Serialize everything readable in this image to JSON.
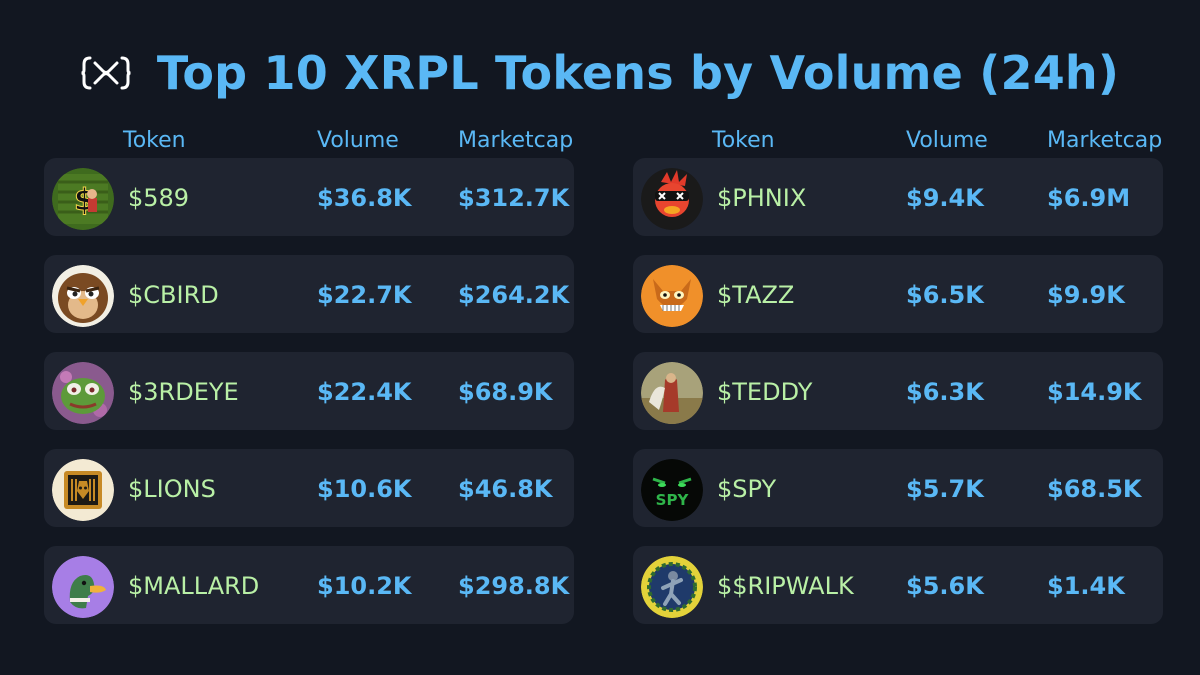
{
  "title": "Top 10 XRPL Tokens by Volume (24h)",
  "logo_icon": "xrpl-logo-icon",
  "colors": {
    "background": "#121721",
    "row": "#1f2430",
    "accent": "#5ab8f5",
    "token": "#b9f0a6"
  },
  "headers": {
    "token": "Token",
    "volume": "Volume",
    "marketcap": "Marketcap"
  },
  "left": [
    {
      "name": "$589",
      "volume": "$36.8K",
      "marketcap": "$312.7K",
      "icon": "589-token-avatar-icon"
    },
    {
      "name": "$CBIRD",
      "volume": "$22.7K",
      "marketcap": "$264.2K",
      "icon": "cbird-token-avatar-icon"
    },
    {
      "name": "$3RDEYE",
      "volume": "$22.4K",
      "marketcap": "$68.9K",
      "icon": "3rdeye-token-avatar-icon"
    },
    {
      "name": "$LIONS",
      "volume": "$10.6K",
      "marketcap": "$46.8K",
      "icon": "lions-token-avatar-icon"
    },
    {
      "name": "$MALLARD",
      "volume": "$10.2K",
      "marketcap": "$298.8K",
      "icon": "mallard-token-avatar-icon"
    }
  ],
  "right": [
    {
      "name": "$PHNIX",
      "volume": "$9.4K",
      "marketcap": "$6.9M",
      "icon": "phnix-token-avatar-icon"
    },
    {
      "name": "$TAZZ",
      "volume": "$6.5K",
      "marketcap": "$9.9K",
      "icon": "tazz-token-avatar-icon"
    },
    {
      "name": "$TEDDY",
      "volume": "$6.3K",
      "marketcap": "$14.9K",
      "icon": "teddy-token-avatar-icon"
    },
    {
      "name": "$SPY",
      "volume": "$5.7K",
      "marketcap": "$68.5K",
      "icon": "spy-token-avatar-icon",
      "avatar_text": "SPY"
    },
    {
      "name": "$$RIPWALK",
      "volume": "$5.6K",
      "marketcap": "$1.4K",
      "icon": "ripwalk-token-avatar-icon"
    }
  ]
}
